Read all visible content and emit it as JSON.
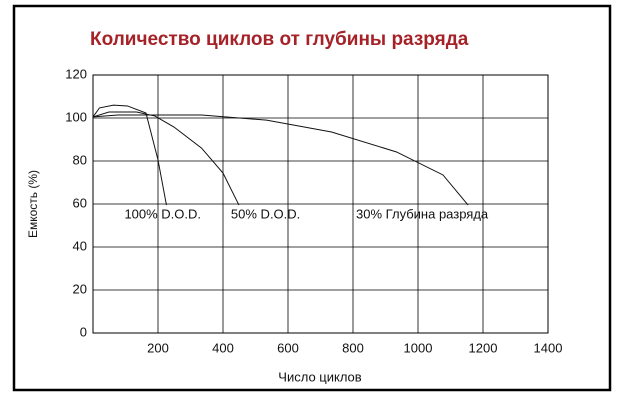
{
  "chart_data": {
    "type": "line",
    "title": "Количество циклов от глубины разряда",
    "x_label": "Число циклов",
    "y_label": "Емкость (%)",
    "xlim": [
      0,
      1400
    ],
    "xticks": [
      200,
      400,
      600,
      800,
      1000,
      1200,
      1400
    ],
    "ylim": [
      0,
      120
    ],
    "yticks": [
      0,
      20,
      40,
      60,
      80,
      100,
      120
    ],
    "grid": true,
    "series": [
      {
        "name": "100% D.O.D.",
        "color": "#111111",
        "x": [
          0,
          20,
          63,
          106,
          163,
          200,
          226
        ],
        "values": [
          100.5,
          104.7,
          106,
          105.6,
          102.3,
          80.5,
          59.5
        ]
      },
      {
        "name": "50% D.O.D.",
        "color": "#111111",
        "x": [
          0,
          49,
          134,
          191,
          249,
          334,
          400,
          449
        ],
        "values": [
          100.5,
          102.8,
          102.8,
          100.9,
          95.8,
          86,
          74.4,
          59.5
        ]
      },
      {
        "name": "30% Глубина разряда",
        "color": "#111111",
        "x": [
          0,
          77,
          334,
          534,
          734,
          934,
          1077,
          1154
        ],
        "values": [
          100.5,
          101.4,
          101.4,
          99,
          93.5,
          84.2,
          73.5,
          59.5
        ]
      }
    ]
  }
}
